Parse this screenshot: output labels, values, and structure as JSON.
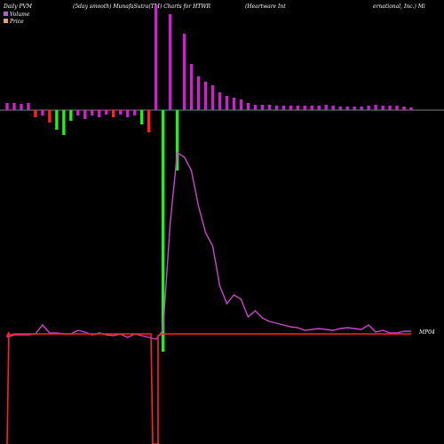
{
  "header": {
    "left": "Daily PVM",
    "mid1": "(5day smooth) MunafaSutra(TM) Charts for HTWR",
    "mid2": "(Heartware  Int",
    "right": "ernational,  Inc.) Mi"
  },
  "legend": {
    "volume_label": "Volume",
    "price_label": "Price",
    "volume_color": "#b25cd4",
    "price_color": "#e8a070"
  },
  "colors": {
    "background": "#000000",
    "baseline": "#aaaaaa",
    "vol_up": "#cc22cc",
    "vol_down_red": "#ff2222",
    "vol_down_green": "#22ee22",
    "pvm_line": "#cc44cc",
    "price_line": "#ff2222"
  },
  "chart_data": {
    "type": "bar",
    "title": "Daily PVM (5day smooth) MunafaSutra(TM) Charts for HTWR (Heartware International, Inc.) Mi",
    "price_label_text": "MP04",
    "n": 58,
    "volume_bars": [
      {
        "v": 8,
        "c": "up"
      },
      {
        "v": 8,
        "c": "up"
      },
      {
        "v": 7,
        "c": "up"
      },
      {
        "v": 8,
        "c": "up"
      },
      {
        "v": -8,
        "c": "red"
      },
      {
        "v": -6,
        "c": "up"
      },
      {
        "v": -14,
        "c": "red"
      },
      {
        "v": -22,
        "c": "green"
      },
      {
        "v": -28,
        "c": "green"
      },
      {
        "v": -12,
        "c": "green"
      },
      {
        "v": -6,
        "c": "up"
      },
      {
        "v": -10,
        "c": "up"
      },
      {
        "v": -6,
        "c": "up"
      },
      {
        "v": -8,
        "c": "up"
      },
      {
        "v": -5,
        "c": "up"
      },
      {
        "v": -8,
        "c": "red"
      },
      {
        "v": -5,
        "c": "up"
      },
      {
        "v": -8,
        "c": "up"
      },
      {
        "v": -6,
        "c": "up"
      },
      {
        "v": -16,
        "c": "green"
      },
      {
        "v": -25,
        "c": "red"
      },
      {
        "v": 118,
        "c": "up"
      },
      {
        "v": -272,
        "c": "green"
      },
      {
        "v": 108,
        "c": "up"
      },
      {
        "v": -68,
        "c": "green"
      },
      {
        "v": 86,
        "c": "up"
      },
      {
        "v": 52,
        "c": "up"
      },
      {
        "v": 38,
        "c": "up"
      },
      {
        "v": 32,
        "c": "up"
      },
      {
        "v": 28,
        "c": "up"
      },
      {
        "v": 20,
        "c": "up"
      },
      {
        "v": 16,
        "c": "up"
      },
      {
        "v": 14,
        "c": "up"
      },
      {
        "v": 12,
        "c": "up"
      },
      {
        "v": 8,
        "c": "up"
      },
      {
        "v": 6,
        "c": "up"
      },
      {
        "v": 6,
        "c": "up"
      },
      {
        "v": 6,
        "c": "up"
      },
      {
        "v": 5,
        "c": "up"
      },
      {
        "v": 5,
        "c": "up"
      },
      {
        "v": 5,
        "c": "up"
      },
      {
        "v": 5,
        "c": "up"
      },
      {
        "v": 5,
        "c": "up"
      },
      {
        "v": 5,
        "c": "up"
      },
      {
        "v": 5,
        "c": "up"
      },
      {
        "v": 6,
        "c": "up"
      },
      {
        "v": 5,
        "c": "up"
      },
      {
        "v": 4,
        "c": "up"
      },
      {
        "v": 4,
        "c": "up"
      },
      {
        "v": 4,
        "c": "up"
      },
      {
        "v": 4,
        "c": "up"
      },
      {
        "v": 5,
        "c": "up"
      },
      {
        "v": 6,
        "c": "up"
      },
      {
        "v": 5,
        "c": "up"
      },
      {
        "v": 5,
        "c": "up"
      },
      {
        "v": 5,
        "c": "up"
      },
      {
        "v": 4,
        "c": "up"
      },
      {
        "v": 3,
        "c": "up"
      }
    ],
    "pvm_line": [
      -8,
      -5,
      -5,
      -5,
      -4,
      6,
      -3,
      -3,
      -4,
      -4,
      0,
      -2,
      -5,
      -3,
      -5,
      -6,
      -4,
      -8,
      -4,
      -6,
      -8,
      -10,
      0,
      120,
      200,
      195,
      180,
      140,
      110,
      95,
      50,
      30,
      40,
      35,
      15,
      22,
      14,
      10,
      8,
      6,
      4,
      3,
      0,
      1,
      2,
      1,
      0,
      2,
      3,
      2,
      1,
      6,
      -2,
      0,
      -3,
      -3,
      -1,
      -1
    ],
    "price_line": [
      0,
      2,
      2,
      2,
      2,
      2,
      2,
      2,
      2,
      2,
      2,
      2,
      2,
      2,
      2,
      2,
      2,
      2,
      2,
      2,
      2,
      2,
      2,
      2,
      2,
      2,
      2,
      2,
      2,
      2,
      2,
      2,
      2,
      2,
      2,
      2,
      2,
      2,
      2,
      2,
      2,
      2,
      2,
      2,
      2,
      2,
      2,
      2,
      2,
      2,
      2,
      2,
      2,
      2,
      2,
      2,
      2,
      2
    ]
  }
}
